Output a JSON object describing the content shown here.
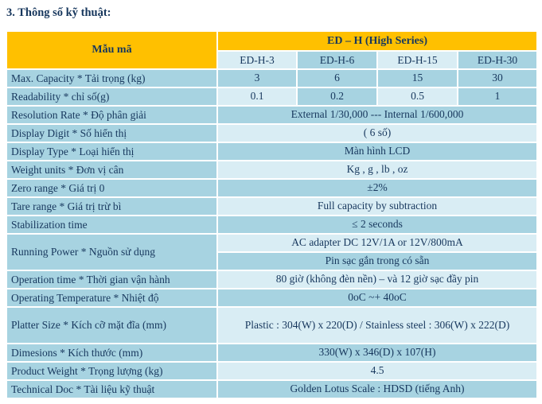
{
  "page_title": "3. Thông số kỹ thuật:",
  "colors": {
    "header_bg": "#ffc000",
    "text": "#17375d",
    "cell_medium": "#a7d3e1",
    "cell_light": "#d9edf4",
    "grid": "#ffffff"
  },
  "table": {
    "corner_label": "Mẫu mã",
    "series_header": "ED – H (High Series)",
    "model_columns": [
      {
        "label": "ED-H-3",
        "shade": "light"
      },
      {
        "label": "ED-H-6",
        "shade": "medium"
      },
      {
        "label": "ED-H-15",
        "shade": "light"
      },
      {
        "label": "ED-H-30",
        "shade": "medium"
      }
    ],
    "rows": [
      {
        "kind": "split",
        "label": "Max. Capacity * Tải trọng (kg)",
        "cells": [
          {
            "value": "3",
            "shade": "medium"
          },
          {
            "value": "6",
            "shade": "medium"
          },
          {
            "value": "15",
            "shade": "medium"
          },
          {
            "value": "30",
            "shade": "medium"
          }
        ]
      },
      {
        "kind": "split",
        "label": "Readability * chỉ số(g)",
        "cells": [
          {
            "value": "0.1",
            "shade": "light"
          },
          {
            "value": "0.2",
            "shade": "medium"
          },
          {
            "value": "0.5",
            "shade": "light"
          },
          {
            "value": "1",
            "shade": "medium"
          }
        ]
      },
      {
        "kind": "merged",
        "label": "Resolution Rate * Độ phân giải",
        "value": "External 1/30,000 --- Internal 1/600,000",
        "shade": "medium"
      },
      {
        "kind": "merged",
        "label": "Display Digit * Số hiển thị",
        "value": "( 6 số)",
        "shade": "light"
      },
      {
        "kind": "merged",
        "label": "Display Type * Loại hiển thị",
        "value": "Màn hình LCD",
        "shade": "medium"
      },
      {
        "kind": "merged",
        "label": "Weight units * Đơn vị cân",
        "value": "Kg , g , lb , oz",
        "shade": "light"
      },
      {
        "kind": "merged",
        "label": "Zero range * Giá trị 0",
        "value": "±2%",
        "shade": "medium"
      },
      {
        "kind": "merged",
        "label": "Tare range * Giá trị trừ bì",
        "value": "Full capacity by subtraction",
        "shade": "light"
      },
      {
        "kind": "merged",
        "label": "Stabilization time",
        "value": "≤ 2 seconds",
        "shade": "medium"
      },
      {
        "kind": "merged",
        "label": "Running Power * Nguồn sử dụng",
        "label_rowspan": 2,
        "value": "AC adapter DC 12V/1A or 12V/800mA",
        "shade": "light"
      },
      {
        "kind": "merged_continuation",
        "value": "Pin sạc gắn trong có sẵn",
        "shade": "medium"
      },
      {
        "kind": "merged",
        "label": "Operation time * Thời gian vận hành",
        "value": "80 giờ (không đèn nền) – và 12 giờ sạc đầy pin",
        "shade": "light"
      },
      {
        "kind": "merged",
        "label": "Operating Temperature * Nhiệt độ",
        "value": "0oC ~+ 40oC",
        "shade": "medium"
      },
      {
        "kind": "merged",
        "label": "Platter Size * Kích cỡ mặt đĩa (mm)",
        "value": "Plastic : 304(W) x 220(D) / Stainless steel : 306(W) x 222(D)",
        "shade": "light",
        "tall": true
      },
      {
        "kind": "merged",
        "label": "Dimesions * Kích thước (mm)",
        "value": "330(W) x 346(D) x 107(H)",
        "shade": "medium"
      },
      {
        "kind": "merged",
        "label": "Product Weight * Trọng lượng (kg)",
        "value": "4.5",
        "shade": "light"
      },
      {
        "kind": "merged",
        "label": "Technical Doc * Tài liệu kỹ thuật",
        "value": "Golden Lotus Scale : HDSD (tiếng Anh)",
        "shade": "medium"
      }
    ]
  }
}
